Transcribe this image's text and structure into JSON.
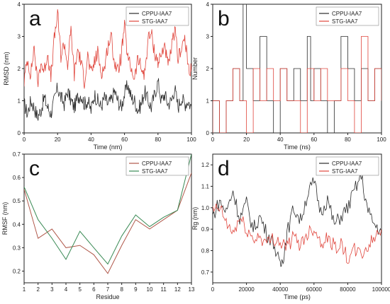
{
  "figure": {
    "colors": {
      "black_series": "#2b2b2b",
      "red_series": "#e0453c",
      "green_series": "#3a8a55",
      "brown_series": "#b0584a"
    }
  },
  "chart_data": [
    {
      "panel": "a",
      "type": "line",
      "xlabel": "Time (nm)",
      "ylabel": "RMSD (nm)",
      "xlim": [
        0,
        100
      ],
      "ylim": [
        0,
        4
      ],
      "xticks": [
        0,
        20,
        40,
        60,
        80,
        100
      ],
      "yticks": [
        0,
        1,
        2,
        3,
        4
      ],
      "legend_position": "top-right",
      "series": [
        {
          "name": "CPPU-IAA7",
          "x": [
            0,
            2,
            4,
            6,
            8,
            10,
            12,
            14,
            16,
            18,
            20,
            22,
            24,
            26,
            28,
            30,
            32,
            34,
            36,
            38,
            40,
            42,
            44,
            46,
            48,
            50,
            52,
            54,
            56,
            58,
            60,
            62,
            64,
            66,
            68,
            70,
            72,
            74,
            76,
            78,
            80,
            82,
            84,
            86,
            88,
            90,
            92,
            94,
            96,
            98,
            100
          ],
          "y": [
            0.9,
            0.6,
            1.0,
            0.8,
            0.5,
            0.7,
            1.1,
            0.8,
            0.6,
            1.0,
            1.4,
            1.1,
            0.9,
            1.3,
            1.0,
            0.8,
            1.1,
            1.2,
            0.9,
            1.0,
            0.7,
            1.2,
            1.0,
            0.8,
            1.1,
            0.9,
            1.0,
            1.3,
            1.0,
            0.8,
            1.2,
            1.5,
            1.1,
            1.0,
            0.7,
            0.9,
            1.3,
            1.0,
            0.8,
            1.2,
            1.6,
            1.0,
            1.2,
            0.9,
            1.0,
            1.4,
            0.8,
            1.1,
            0.9,
            1.0,
            0.8
          ]
        },
        {
          "name": "STG-IAA7",
          "x": [
            0,
            2,
            4,
            6,
            8,
            10,
            12,
            14,
            16,
            18,
            20,
            22,
            24,
            26,
            28,
            30,
            32,
            34,
            36,
            38,
            40,
            42,
            44,
            46,
            48,
            50,
            52,
            54,
            56,
            58,
            60,
            62,
            64,
            66,
            68,
            70,
            72,
            74,
            76,
            78,
            80,
            82,
            84,
            86,
            88,
            90,
            92,
            94,
            96,
            98,
            100
          ],
          "y": [
            1.6,
            2.3,
            1.8,
            2.7,
            1.5,
            2.2,
            1.9,
            2.5,
            1.7,
            2.9,
            3.7,
            2.4,
            2.8,
            2.1,
            3.2,
            1.8,
            2.6,
            2.2,
            1.6,
            2.4,
            1.8,
            2.2,
            2.5,
            1.9,
            2.0,
            2.7,
            3.0,
            2.2,
            1.9,
            2.4,
            3.3,
            2.3,
            2.0,
            1.7,
            2.3,
            2.0,
            1.8,
            2.9,
            3.1,
            2.5,
            2.2,
            2.4,
            2.8,
            2.0,
            2.6,
            3.2,
            2.3,
            2.7,
            2.9,
            2.1,
            1.9
          ]
        }
      ]
    },
    {
      "panel": "b",
      "type": "line",
      "xlabel": "Time (ns)",
      "ylabel": "Number",
      "xlim": [
        0,
        100
      ],
      "ylim": [
        0,
        4
      ],
      "xticks": [
        0,
        20,
        40,
        60,
        80,
        100
      ],
      "yticks": [
        0,
        1,
        2,
        3,
        4
      ],
      "legend_position": "top-right",
      "series": [
        {
          "name": "CPPU-IAA7",
          "x": [
            0,
            4,
            8,
            12,
            16,
            18,
            20,
            24,
            28,
            32,
            36,
            40,
            44,
            48,
            52,
            56,
            58,
            60,
            64,
            68,
            72,
            76,
            80,
            84,
            88,
            92,
            96,
            100
          ],
          "y": [
            1,
            0,
            1,
            2,
            1,
            4,
            2,
            1,
            3,
            1,
            0,
            2,
            1,
            2,
            1,
            3,
            1,
            2,
            1,
            0,
            1,
            3,
            2,
            1,
            2,
            1,
            2,
            1
          ]
        },
        {
          "name": "STG-IAA7",
          "x": [
            0,
            4,
            8,
            12,
            16,
            20,
            24,
            28,
            32,
            36,
            40,
            44,
            48,
            52,
            56,
            60,
            64,
            68,
            72,
            76,
            80,
            84,
            88,
            92,
            96,
            100
          ],
          "y": [
            1,
            0,
            1,
            2,
            1,
            0,
            2,
            1,
            2,
            1,
            2,
            1,
            1,
            0,
            2,
            1,
            2,
            1,
            1,
            2,
            1,
            0,
            3,
            1,
            2,
            1
          ]
        }
      ]
    },
    {
      "panel": "c",
      "type": "line",
      "xlabel": "Residue",
      "ylabel": "RMSF (nm)",
      "xlim": [
        1,
        13
      ],
      "ylim": [
        0.15,
        0.7
      ],
      "xticks": [
        1,
        2,
        3,
        4,
        5,
        6,
        7,
        8,
        9,
        10,
        11,
        12,
        13
      ],
      "yticks": [
        0.2,
        0.3,
        0.4,
        0.5,
        0.6,
        0.7
      ],
      "legend_position": "top-right",
      "series": [
        {
          "name": "CPPU-IAA7",
          "x": [
            1,
            2,
            3,
            4,
            5,
            6,
            7,
            8,
            9,
            10,
            11,
            12,
            13
          ],
          "y": [
            0.55,
            0.34,
            0.38,
            0.3,
            0.31,
            0.27,
            0.19,
            0.31,
            0.42,
            0.38,
            0.42,
            0.46,
            0.62
          ]
        },
        {
          "name": "STG-IAA7",
          "x": [
            1,
            2,
            3,
            4,
            5,
            6,
            7,
            8,
            9,
            10,
            11,
            12,
            13
          ],
          "y": [
            0.56,
            0.42,
            0.34,
            0.25,
            0.37,
            0.3,
            0.23,
            0.35,
            0.44,
            0.39,
            0.43,
            0.46,
            0.7
          ]
        }
      ]
    },
    {
      "panel": "d",
      "type": "line",
      "xlabel": "Time (ps)",
      "ylabel": "Rg (nm)",
      "xlim": [
        0,
        100000
      ],
      "ylim": [
        0.65,
        1.25
      ],
      "xticks": [
        0,
        20000,
        40000,
        60000,
        80000,
        100000
      ],
      "yticks": [
        0.7,
        0.8,
        0.9,
        1.0,
        1.1,
        1.2
      ],
      "legend_position": "top-right",
      "series": [
        {
          "name": "CPPU-IAA7",
          "x": [
            0,
            4000,
            8000,
            12000,
            16000,
            20000,
            24000,
            28000,
            32000,
            36000,
            40000,
            42000,
            44000,
            48000,
            52000,
            56000,
            60000,
            64000,
            68000,
            72000,
            76000,
            80000,
            84000,
            88000,
            92000,
            96000,
            100000
          ],
          "y": [
            0.96,
            1.03,
            0.98,
            1.08,
            0.95,
            1.02,
            0.9,
            0.96,
            0.88,
            0.84,
            0.72,
            0.78,
            0.88,
            1.0,
            0.94,
            1.06,
            1.12,
            0.98,
            1.04,
            0.92,
            0.96,
            1.0,
            1.08,
            1.15,
            0.98,
            0.92,
            0.89
          ]
        },
        {
          "name": "STG-IAA7",
          "x": [
            0,
            4000,
            8000,
            12000,
            16000,
            20000,
            24000,
            28000,
            32000,
            36000,
            40000,
            44000,
            48000,
            52000,
            56000,
            60000,
            64000,
            68000,
            72000,
            76000,
            80000,
            84000,
            88000,
            92000,
            96000,
            100000
          ],
          "y": [
            0.98,
            1.0,
            0.93,
            0.88,
            0.95,
            0.9,
            0.85,
            0.87,
            0.83,
            0.86,
            0.84,
            0.82,
            0.86,
            0.83,
            0.88,
            0.91,
            0.84,
            0.86,
            0.82,
            0.83,
            0.76,
            0.8,
            0.78,
            0.82,
            0.86,
            0.9
          ]
        }
      ]
    }
  ]
}
